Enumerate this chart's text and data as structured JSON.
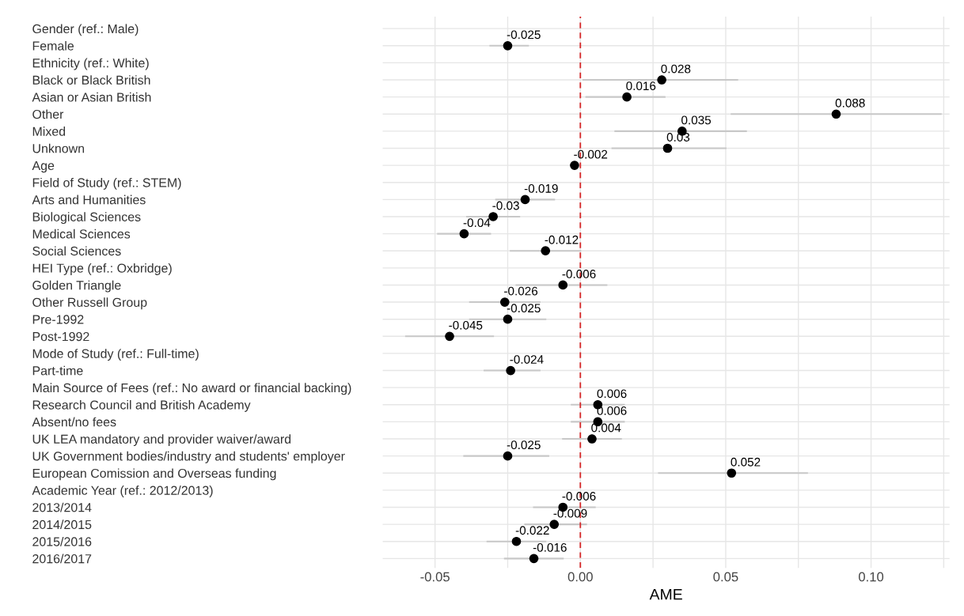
{
  "chart_data": {
    "type": "scatter",
    "orientation": "horizontal",
    "xlabel": "AME",
    "categories": [
      "Gender (ref.: Male)",
      "Female",
      "Ethnicity (ref.: White)",
      "Black or Black British",
      "Asian or Asian British",
      "Other",
      "Mixed",
      "Unknown",
      "Age",
      "Field of Study (ref.: STEM)",
      "Arts and Humanities",
      "Biological Sciences",
      "Medical Sciences",
      "Social Sciences",
      "HEI Type (ref.: Oxbridge)",
      "Golden Triangle",
      "Other Russell Group",
      "Pre-1992",
      "Post-1992",
      "Mode of Study (ref.: Full-time)",
      "Part-time",
      "Main Source of Fees (ref.: No award or financial backing)",
      "Research Council and British Academy",
      "Absent/no fees",
      "UK LEA mandatory and provider waiver/award",
      "UK Government bodies/industry and students' employer",
      "European Comission and Overseas funding",
      "Academic Year (ref.: 2012/2013)",
      "2013/2014",
      "2014/2015",
      "2015/2016",
      "2016/2017"
    ],
    "series": [
      {
        "color": "#000000",
        "values": [
          null,
          -0.025,
          null,
          0.028,
          0.016,
          0.088,
          0.035,
          0.03,
          -0.002,
          null,
          -0.019,
          -0.03,
          -0.04,
          -0.012,
          null,
          -0.006,
          -0.026,
          -0.025,
          -0.045,
          null,
          -0.024,
          null,
          0.006,
          0.006,
          0.004,
          -0.025,
          0.052,
          null,
          -0.006,
          -0.009,
          -0.022,
          -0.016
        ],
        "errors": [
          null,
          [
            -0.031,
            -0.018
          ],
          null,
          [
            0.001,
            0.054
          ],
          [
            0.002,
            0.029
          ],
          [
            0.052,
            0.124
          ],
          [
            0.012,
            0.057
          ],
          [
            0.011,
            0.05
          ],
          null,
          null,
          [
            -0.029,
            -0.009
          ],
          [
            -0.039,
            -0.021
          ],
          [
            -0.049,
            -0.031
          ],
          [
            -0.024,
            0.0
          ],
          null,
          [
            -0.022,
            0.009
          ],
          [
            -0.038,
            -0.014
          ],
          [
            -0.038,
            -0.012
          ],
          [
            -0.06,
            -0.03
          ],
          null,
          [
            -0.033,
            -0.014
          ],
          null,
          [
            -0.003,
            0.015
          ],
          [
            -0.003,
            0.015
          ],
          [
            -0.006,
            0.014
          ],
          [
            -0.04,
            -0.011
          ],
          [
            0.027,
            0.078
          ],
          null,
          [
            -0.016,
            0.005
          ],
          [
            -0.019,
            0.002
          ],
          [
            -0.032,
            -0.012
          ],
          [
            -0.026,
            -0.006
          ]
        ]
      }
    ],
    "xlim": [
      -0.068,
      0.127
    ],
    "xticks": [
      {
        "value": -0.05,
        "label": "-0.05"
      },
      {
        "value": -0.025,
        "label": null
      },
      {
        "value": 0.0,
        "label": "0.00"
      },
      {
        "value": 0.025,
        "label": null
      },
      {
        "value": 0.05,
        "label": "0.05"
      },
      {
        "value": 0.075,
        "label": null
      },
      {
        "value": 0.1,
        "label": "0.10"
      },
      {
        "value": 0.125,
        "label": null
      }
    ],
    "ref_lines": [
      {
        "axis": "x",
        "value": 0,
        "color": "#d62728",
        "line_style": "dashed"
      }
    ],
    "data_labels": true,
    "grid": true,
    "marker": "circle"
  }
}
